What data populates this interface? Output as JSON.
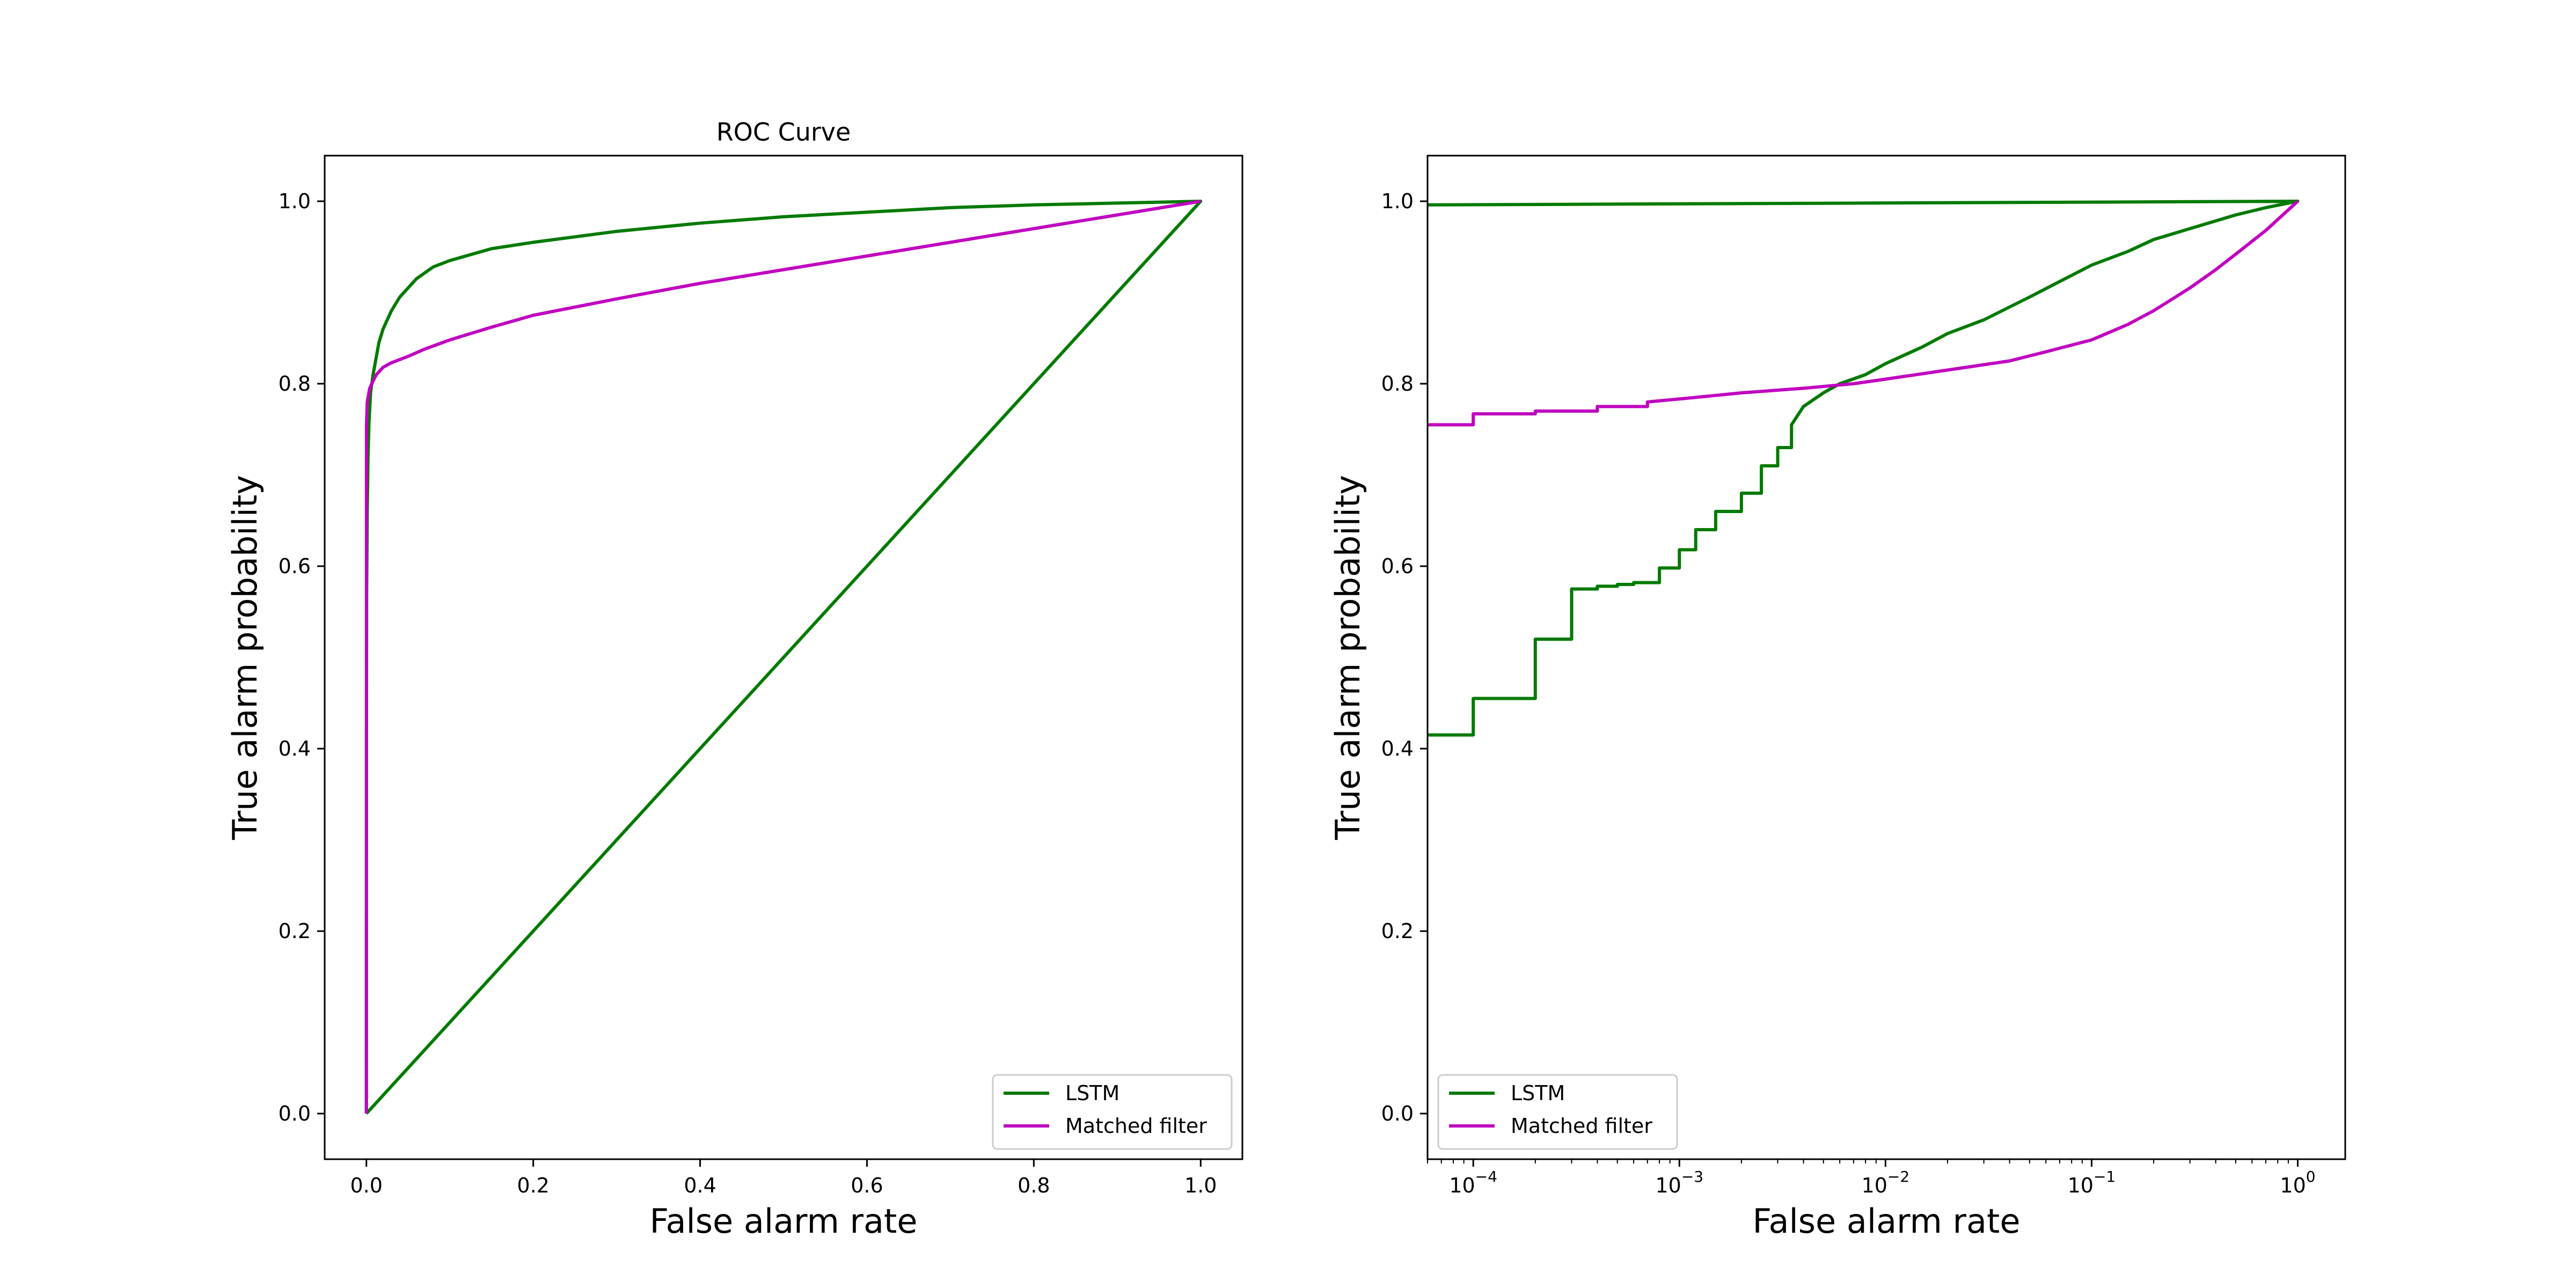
{
  "colors": {
    "LSTM": "#007a00",
    "Matched filter": "#c000c0"
  },
  "chart_data": [
    {
      "type": "line",
      "title": "ROC Curve",
      "xlabel": "False alarm rate",
      "ylabel": "True alarm probability",
      "xscale": "linear",
      "xlim": [
        -0.05,
        1.05
      ],
      "ylim": [
        -0.05,
        1.05
      ],
      "xticks": [
        0.0,
        0.2,
        0.4,
        0.6,
        0.8,
        1.0
      ],
      "xtick_labels": [
        "0.0",
        "0.2",
        "0.4",
        "0.6",
        "0.8",
        "1.0"
      ],
      "yticks": [
        0.0,
        0.2,
        0.4,
        0.6,
        0.8,
        1.0
      ],
      "ytick_labels": [
        "0.0",
        "0.2",
        "0.4",
        "0.6",
        "0.8",
        "1.0"
      ],
      "grid": false,
      "legend": "lower-right",
      "series": [
        {
          "name": "LSTM",
          "x": [
            0,
            0.0001,
            0.0003,
            0.001,
            0.002,
            0.003,
            0.005,
            0.008,
            0.01,
            0.015,
            0.02,
            0.03,
            0.04,
            0.05,
            0.06,
            0.08,
            0.1,
            0.15,
            0.2,
            0.3,
            0.4,
            0.5,
            0.6,
            0.7,
            0.8,
            0.9,
            1.0,
            0.8,
            0.6,
            0.4,
            0.2,
            0
          ],
          "y": [
            0,
            0.415,
            0.57,
            0.66,
            0.72,
            0.755,
            0.79,
            0.81,
            0.82,
            0.845,
            0.86,
            0.88,
            0.895,
            0.905,
            0.915,
            0.928,
            0.935,
            0.948,
            0.955,
            0.967,
            0.976,
            0.983,
            0.988,
            0.993,
            0.996,
            0.998,
            1.0,
            0.8,
            0.6,
            0.4,
            0.2,
            0
          ]
        },
        {
          "name": "Matched filter",
          "x": [
            0,
            0.0001,
            0.001,
            0.004,
            0.008,
            0.012,
            0.02,
            0.03,
            0.05,
            0.07,
            0.1,
            0.15,
            0.2,
            0.3,
            0.4,
            0.5,
            0.6,
            0.7,
            0.8,
            0.9,
            1.0
          ],
          "y": [
            0,
            0.755,
            0.78,
            0.795,
            0.803,
            0.81,
            0.818,
            0.823,
            0.83,
            0.838,
            0.848,
            0.862,
            0.875,
            0.893,
            0.91,
            0.925,
            0.94,
            0.955,
            0.97,
            0.985,
            1.0
          ]
        }
      ]
    },
    {
      "type": "line",
      "title": "",
      "xlabel": "False alarm rate",
      "ylabel": "True alarm probability",
      "xscale": "log",
      "xlim": [
        6e-05,
        1.7
      ],
      "ylim": [
        -0.05,
        1.05
      ],
      "xticks": [
        0.0001,
        0.001,
        0.01,
        0.1,
        1
      ],
      "xtick_labels": [
        {
          "base": "10",
          "exp": "−4"
        },
        {
          "base": "10",
          "exp": "−3"
        },
        {
          "base": "10",
          "exp": "−2"
        },
        {
          "base": "10",
          "exp": "−1"
        },
        {
          "base": "10",
          "exp": "0"
        }
      ],
      "yticks": [
        0.0,
        0.2,
        0.4,
        0.6,
        0.8,
        1.0
      ],
      "ytick_labels": [
        "0.0",
        "0.2",
        "0.4",
        "0.6",
        "0.8",
        "1.0"
      ],
      "grid": false,
      "legend": "lower-left",
      "series": [
        {
          "name": "LSTM",
          "x": [
            6e-05,
            0.0001,
            0.0001,
            0.0002,
            0.0002,
            0.0003,
            0.0003,
            0.0004,
            0.0004,
            0.0005,
            0.0005,
            0.0006,
            0.0006,
            0.0008,
            0.0008,
            0.001,
            0.001,
            0.0012,
            0.0012,
            0.0015,
            0.0015,
            0.002,
            0.002,
            0.0025,
            0.0025,
            0.003,
            0.003,
            0.0035,
            0.0035,
            0.004,
            0.005,
            0.006,
            0.008,
            0.01,
            0.015,
            0.02,
            0.03,
            0.05,
            0.07,
            0.1,
            0.15,
            0.2,
            0.3,
            0.5,
            0.7,
            1.0,
            6e-05
          ],
          "y": [
            0.415,
            0.415,
            0.455,
            0.455,
            0.52,
            0.52,
            0.575,
            0.575,
            0.578,
            0.578,
            0.58,
            0.58,
            0.582,
            0.582,
            0.598,
            0.598,
            0.618,
            0.618,
            0.64,
            0.64,
            0.66,
            0.66,
            0.68,
            0.68,
            0.71,
            0.71,
            0.73,
            0.73,
            0.755,
            0.775,
            0.79,
            0.8,
            0.81,
            0.822,
            0.84,
            0.855,
            0.87,
            0.895,
            0.912,
            0.93,
            0.945,
            0.958,
            0.97,
            0.985,
            0.993,
            1.0,
            0.996
          ]
        },
        {
          "name": "Matched filter",
          "x": [
            6e-05,
            0.0001,
            0.0001,
            0.0002,
            0.0002,
            0.0004,
            0.0004,
            0.0007,
            0.0007,
            0.0012,
            0.002,
            0.004,
            0.007,
            0.01,
            0.02,
            0.04,
            0.06,
            0.1,
            0.15,
            0.2,
            0.3,
            0.4,
            0.5,
            0.7,
            1.0
          ],
          "y": [
            0.755,
            0.755,
            0.767,
            0.767,
            0.77,
            0.77,
            0.775,
            0.775,
            0.78,
            0.785,
            0.79,
            0.795,
            0.8,
            0.805,
            0.815,
            0.825,
            0.835,
            0.848,
            0.865,
            0.88,
            0.905,
            0.925,
            0.942,
            0.968,
            1.0
          ]
        }
      ]
    }
  ]
}
